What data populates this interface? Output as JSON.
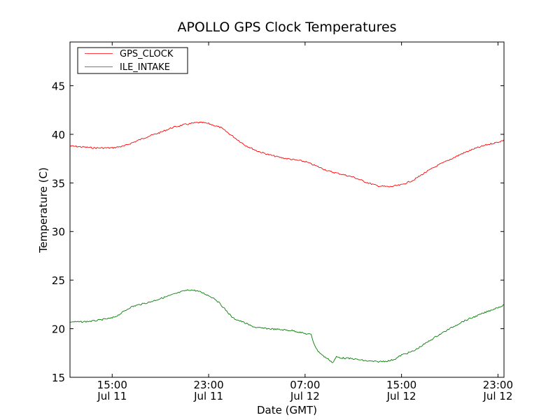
{
  "chart_data": {
    "type": "line",
    "title": "APOLLO GPS Clock Temperatures",
    "xlabel": "Date (GMT)",
    "ylabel": "Temperature (C)",
    "xunit": "hours since Jul 11 00:00 GMT",
    "xlim": [
      11.5,
      47.5
    ],
    "ylim": [
      15,
      49.5
    ],
    "grid": false,
    "legend_position": "top-left",
    "yticks": [
      15,
      20,
      25,
      30,
      35,
      40,
      45
    ],
    "xticks": [
      {
        "value": 15,
        "time": "15:00",
        "date": "Jul 11"
      },
      {
        "value": 23,
        "time": "23:00",
        "date": "Jul 11"
      },
      {
        "value": 31,
        "time": "07:00",
        "date": "Jul 12"
      },
      {
        "value": 39,
        "time": "15:00",
        "date": "Jul 12"
      },
      {
        "value": 47,
        "time": "23:00",
        "date": "Jul 12"
      }
    ],
    "series": [
      {
        "name": "GPS_CLOCK",
        "color": "#ff0000",
        "points": [
          [
            11.5,
            38.8
          ],
          [
            12.5,
            38.7
          ],
          [
            13.5,
            38.6
          ],
          [
            14.5,
            38.6
          ],
          [
            15.0,
            38.6
          ],
          [
            16.0,
            38.8
          ],
          [
            17.0,
            39.3
          ],
          [
            18.0,
            39.8
          ],
          [
            19.0,
            40.2
          ],
          [
            20.0,
            40.7
          ],
          [
            21.0,
            41.0
          ],
          [
            22.0,
            41.2
          ],
          [
            22.5,
            41.2
          ],
          [
            23.0,
            41.1
          ],
          [
            24.0,
            40.7
          ],
          [
            25.0,
            39.8
          ],
          [
            26.0,
            38.9
          ],
          [
            27.0,
            38.3
          ],
          [
            28.0,
            37.9
          ],
          [
            29.0,
            37.6
          ],
          [
            30.0,
            37.4
          ],
          [
            31.0,
            37.2
          ],
          [
            32.0,
            36.7
          ],
          [
            33.0,
            36.2
          ],
          [
            34.0,
            35.9
          ],
          [
            35.0,
            35.6
          ],
          [
            36.0,
            35.1
          ],
          [
            37.0,
            34.7
          ],
          [
            38.0,
            34.6
          ],
          [
            39.0,
            34.8
          ],
          [
            40.0,
            35.3
          ],
          [
            41.0,
            36.1
          ],
          [
            42.0,
            36.8
          ],
          [
            43.0,
            37.4
          ],
          [
            44.0,
            38.0
          ],
          [
            45.0,
            38.5
          ],
          [
            46.0,
            38.9
          ],
          [
            47.0,
            39.2
          ],
          [
            47.5,
            39.4
          ]
        ]
      },
      {
        "name": "ILE_INTAKE",
        "color": "#008000",
        "points": [
          [
            11.5,
            20.7
          ],
          [
            12.5,
            20.7
          ],
          [
            13.5,
            20.8
          ],
          [
            14.5,
            21.0
          ],
          [
            15.0,
            21.1
          ],
          [
            15.5,
            21.4
          ],
          [
            16.0,
            21.8
          ],
          [
            16.5,
            22.2
          ],
          [
            17.0,
            22.4
          ],
          [
            18.0,
            22.7
          ],
          [
            19.0,
            23.1
          ],
          [
            20.0,
            23.5
          ],
          [
            21.0,
            23.9
          ],
          [
            21.5,
            24.0
          ],
          [
            22.0,
            23.9
          ],
          [
            22.5,
            23.7
          ],
          [
            23.0,
            23.4
          ],
          [
            23.5,
            23.1
          ],
          [
            24.0,
            22.5
          ],
          [
            24.5,
            21.8
          ],
          [
            25.0,
            21.1
          ],
          [
            26.0,
            20.6
          ],
          [
            26.5,
            20.3
          ],
          [
            27.0,
            20.1
          ],
          [
            28.0,
            20.0
          ],
          [
            29.0,
            19.9
          ],
          [
            30.0,
            19.8
          ],
          [
            31.0,
            19.5
          ],
          [
            31.5,
            19.4
          ],
          [
            31.7,
            18.6
          ],
          [
            32.0,
            17.8
          ],
          [
            32.5,
            17.2
          ],
          [
            33.0,
            16.8
          ],
          [
            33.3,
            16.5
          ],
          [
            33.6,
            17.1
          ],
          [
            34.0,
            17.0
          ],
          [
            35.0,
            16.9
          ],
          [
            36.0,
            16.7
          ],
          [
            37.0,
            16.6
          ],
          [
            38.0,
            16.7
          ],
          [
            38.5,
            16.9
          ],
          [
            39.0,
            17.3
          ],
          [
            40.0,
            17.7
          ],
          [
            41.0,
            18.5
          ],
          [
            42.0,
            19.3
          ],
          [
            43.0,
            20.0
          ],
          [
            44.0,
            20.7
          ],
          [
            45.0,
            21.2
          ],
          [
            46.0,
            21.7
          ],
          [
            47.0,
            22.2
          ],
          [
            47.5,
            22.4
          ]
        ]
      }
    ]
  }
}
